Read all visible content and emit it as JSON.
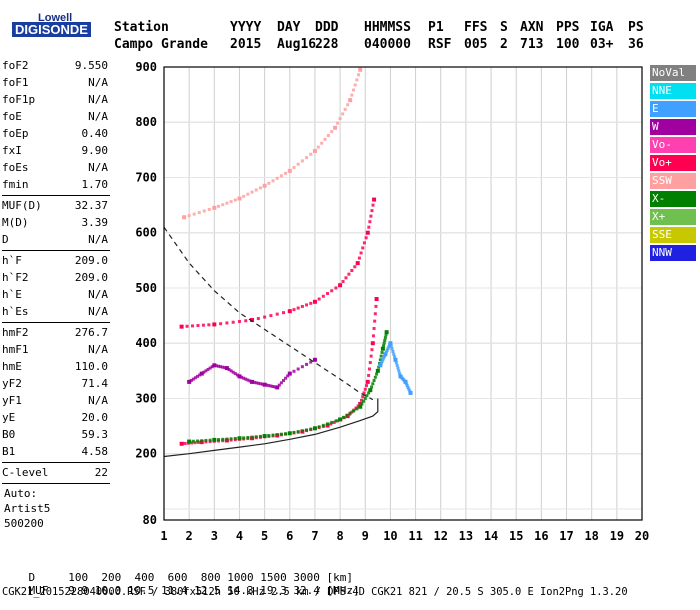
{
  "logo": {
    "lowell": "Lowell",
    "digisonde": "DIGISONDE"
  },
  "header": {
    "col_labels": [
      "Station",
      "YYYY",
      "DAY",
      "DDD",
      "HHMMSS",
      "P1",
      "FFS",
      "S",
      "AXN",
      "PPS",
      "IGA",
      "PS"
    ],
    "col_values": [
      "Campo Grande",
      "2015",
      "Aug16",
      "228",
      "040000",
      "RSF",
      "005",
      "2",
      "713",
      "100",
      "03+",
      "36"
    ]
  },
  "params_group1": [
    {
      "name": "foF2",
      "value": "9.550"
    },
    {
      "name": "foF1",
      "value": "N/A"
    },
    {
      "name": "foF1p",
      "value": "N/A"
    },
    {
      "name": "foE",
      "value": "N/A"
    },
    {
      "name": "foEp",
      "value": "0.40"
    },
    {
      "name": "fxI",
      "value": "9.90"
    },
    {
      "name": "foEs",
      "value": "N/A"
    },
    {
      "name": "fmin",
      "value": "1.70"
    }
  ],
  "params_group2": [
    {
      "name": "MUF(D)",
      "value": "32.37"
    },
    {
      "name": "M(D)",
      "value": "3.39"
    },
    {
      "name": "D",
      "value": "N/A"
    }
  ],
  "params_group3": [
    {
      "name": "h`F",
      "value": "209.0"
    },
    {
      "name": "h`F2",
      "value": "209.0"
    },
    {
      "name": "h`E",
      "value": "N/A"
    },
    {
      "name": "h`Es",
      "value": "N/A"
    }
  ],
  "params_group4": [
    {
      "name": "hmF2",
      "value": "276.7"
    },
    {
      "name": "hmF1",
      "value": "N/A"
    },
    {
      "name": "hmE",
      "value": "110.0"
    },
    {
      "name": "yF2",
      "value": "71.4"
    },
    {
      "name": "yF1",
      "value": "N/A"
    },
    {
      "name": "yE",
      "value": "20.0"
    },
    {
      "name": "B0",
      "value": "59.3"
    },
    {
      "name": "B1",
      "value": "4.58"
    }
  ],
  "c_level": {
    "name": "C-level",
    "value": "22"
  },
  "auto": [
    "Auto:",
    "Artist5",
    "500200"
  ],
  "legend": [
    {
      "label": "NoVal",
      "color": "#808080"
    },
    {
      "label": "NNE",
      "color": "#00e0f0"
    },
    {
      "label": "E",
      "color": "#40a0ff"
    },
    {
      "label": "W",
      "color": "#a000a0"
    },
    {
      "label": "Vo-",
      "color": "#ff40b0"
    },
    {
      "label": "Vo+",
      "color": "#ff0050"
    },
    {
      "label": "SSW",
      "color": "#ffa0a0"
    },
    {
      "label": "X-",
      "color": "#008000"
    },
    {
      "label": "X+",
      "color": "#70c050"
    },
    {
      "label": "SSE",
      "color": "#c8c800"
    },
    {
      "label": "NNW",
      "color": "#2020e0"
    }
  ],
  "footer": {
    "d_label": "D",
    "d_values": "100  200  400  600  800 1000 1500 3000 [km]",
    "muf_label": "MUF",
    "muf_values": "9.9 10.0 10.5 11.4 12.5 14.3 19.3 32.4 [MHz]",
    "info": "CGK21_2015228040000.RSF / 380fx512h 50 kHz 2.5 km / DPS-4D CGK21 821 / 20.5 S 305.0 E Ion2Png 1.3.20"
  },
  "chart_data": {
    "type": "scatter",
    "xlim": [
      1,
      20
    ],
    "ylim": [
      80,
      900
    ],
    "x_ticks": [
      1,
      2,
      3,
      4,
      5,
      6,
      7,
      8,
      9,
      10,
      11,
      12,
      13,
      14,
      15,
      16,
      17,
      18,
      19,
      20
    ],
    "y_ticks": [
      80,
      200,
      300,
      400,
      500,
      600,
      700,
      800,
      900
    ],
    "grid": true,
    "traces": [
      {
        "name": "O-trace F2 1st hop",
        "legend": "Vo+",
        "x": [
          1.7,
          2.5,
          3.5,
          4.5,
          5.5,
          6.5,
          7.5,
          8.3,
          8.8,
          9.1,
          9.3,
          9.45
        ],
        "y": [
          218,
          221,
          224,
          228,
          233,
          240,
          251,
          268,
          290,
          330,
          400,
          480
        ]
      },
      {
        "name": "X-trace F2 1st hop",
        "legend": "X-",
        "x": [
          2.0,
          3.0,
          4.0,
          5.0,
          6.0,
          7.0,
          8.0,
          8.8,
          9.2,
          9.5,
          9.7,
          9.85
        ],
        "y": [
          222,
          225,
          228,
          232,
          237,
          246,
          262,
          285,
          315,
          350,
          390,
          420
        ]
      },
      {
        "name": "O-trace F2 2nd hop",
        "legend": "Vo+",
        "x": [
          1.7,
          3.0,
          4.5,
          6.0,
          7.0,
          8.0,
          8.7,
          9.1,
          9.35
        ],
        "y": [
          430,
          434,
          442,
          458,
          475,
          505,
          545,
          600,
          660
        ]
      },
      {
        "name": "O-trace F2 3rd hop",
        "legend": "SSW",
        "x": [
          1.8,
          3.0,
          4.0,
          5.0,
          6.0,
          7.0,
          7.8,
          8.4,
          8.8
        ],
        "y": [
          628,
          645,
          662,
          685,
          712,
          748,
          790,
          840,
          895
        ]
      },
      {
        "name": "Spread echoes",
        "legend": "W",
        "x": [
          2.0,
          2.5,
          3.0,
          3.5,
          4.0,
          4.5,
          5.0,
          5.5,
          6.0,
          7.0
        ],
        "y": [
          330,
          345,
          360,
          355,
          340,
          330,
          325,
          320,
          345,
          370
        ]
      },
      {
        "name": "Oblique echoes",
        "legend": "E",
        "x": [
          9.6,
          9.8,
          10.0,
          10.2,
          10.4,
          10.6,
          10.8
        ],
        "y": [
          360,
          380,
          400,
          370,
          340,
          330,
          310
        ]
      }
    ],
    "profile_curves": [
      {
        "name": "true-height profile",
        "x": [
          1.0,
          2.0,
          3.0,
          4.0,
          5.0,
          6.0,
          7.0,
          8.0,
          8.8,
          9.3,
          9.5,
          9.5
        ],
        "y": [
          195,
          200,
          206,
          212,
          218,
          226,
          235,
          248,
          260,
          268,
          276,
          300
        ]
      },
      {
        "name": "MUF dashed curve",
        "x": [
          1.0,
          2.0,
          3.0,
          4.0,
          5.0,
          6.0,
          7.0,
          8.0,
          8.8,
          9.3
        ],
        "y": [
          610,
          545,
          495,
          455,
          425,
          395,
          365,
          335,
          310,
          298
        ]
      }
    ]
  }
}
